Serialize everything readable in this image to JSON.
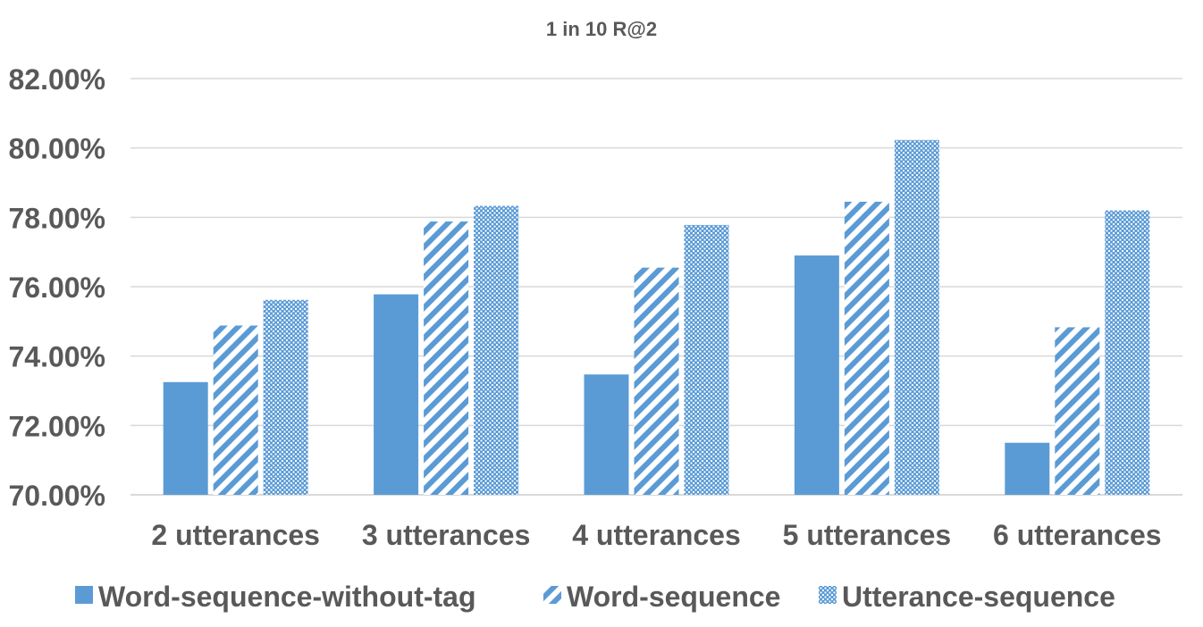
{
  "chart_data": {
    "type": "bar",
    "title": "1 in 10 R@2",
    "xlabel": "",
    "ylabel": "",
    "categories": [
      "2 utterances",
      "3 utterances",
      "4 utterances",
      "5 utterances",
      "6 utterances"
    ],
    "series": [
      {
        "name": "Word-sequence-without-tag",
        "values": [
          73.25,
          75.78,
          73.47,
          76.9,
          71.5
        ],
        "pattern": "solid"
      },
      {
        "name": "Word-sequence",
        "values": [
          74.88,
          77.88,
          76.55,
          78.45,
          74.83
        ],
        "pattern": "diagonal-stripes"
      },
      {
        "name": "Utterance-sequence",
        "values": [
          75.62,
          78.33,
          77.78,
          80.23,
          78.2
        ],
        "pattern": "crosshatch"
      }
    ],
    "ylim": [
      70,
      82
    ],
    "yticks": [
      "70.00%",
      "72.00%",
      "74.00%",
      "76.00%",
      "78.00%",
      "80.00%",
      "82.00%"
    ],
    "grid": true,
    "legend_position": "bottom",
    "colors": {
      "bar": "#5b9bd5",
      "grid": "#d9d9d9",
      "text": "#595959"
    }
  }
}
